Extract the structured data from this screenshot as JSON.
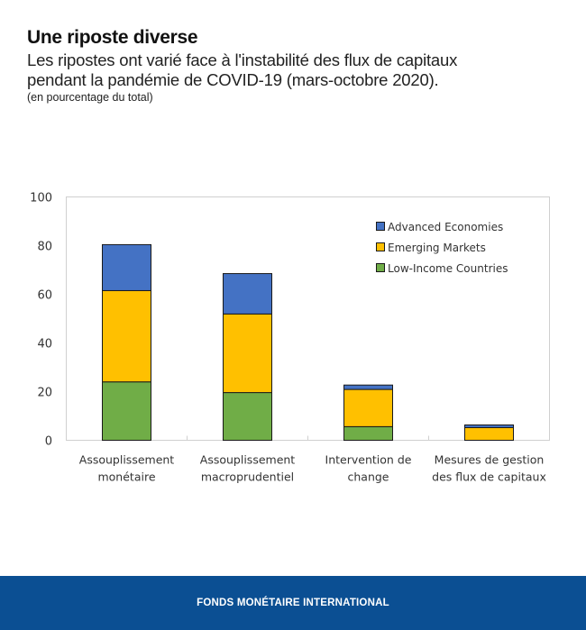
{
  "header": {
    "title": "Une riposte diverse",
    "subtitle_line1": "Les ripostes ont varié face à l'instabilité des flux de capitaux",
    "subtitle_line2": "pendant la pandémie de COVID-19 (mars-octobre 2020).",
    "unit": "(en pourcentage du total)"
  },
  "footer": {
    "text": "FONDS MONÉTAIRE INTERNATIONAL"
  },
  "chart_data": {
    "type": "bar",
    "stacked": true,
    "title": "Une riposte diverse",
    "xlabel": "",
    "ylabel": "",
    "ylim": [
      0,
      100
    ],
    "yticks": [
      "0",
      "20",
      "40",
      "60",
      "80",
      "100"
    ],
    "categories": [
      [
        "Assouplissement",
        "monétaire"
      ],
      [
        "Assouplissement",
        "macroprudentiel"
      ],
      [
        "Intervention de",
        "change"
      ],
      [
        "Mesures de gestion",
        "des flux de capitaux"
      ]
    ],
    "series": [
      {
        "name": "Low-Income Countries",
        "color": "#70ad47",
        "values": [
          24,
          19.6,
          5.6,
          0
        ]
      },
      {
        "name": "Emerging Markets",
        "color": "#ffc000",
        "values": [
          37.5,
          32.3,
          15.3,
          5.2
        ]
      },
      {
        "name": "Advanced Economies",
        "color": "#4472c4",
        "values": [
          18.9,
          16.6,
          1.8,
          1.1
        ]
      }
    ],
    "legend": {
      "position": "top-right",
      "order": [
        "Advanced Economies",
        "Emerging Markets",
        "Low-Income Countries"
      ]
    },
    "grid": false
  }
}
